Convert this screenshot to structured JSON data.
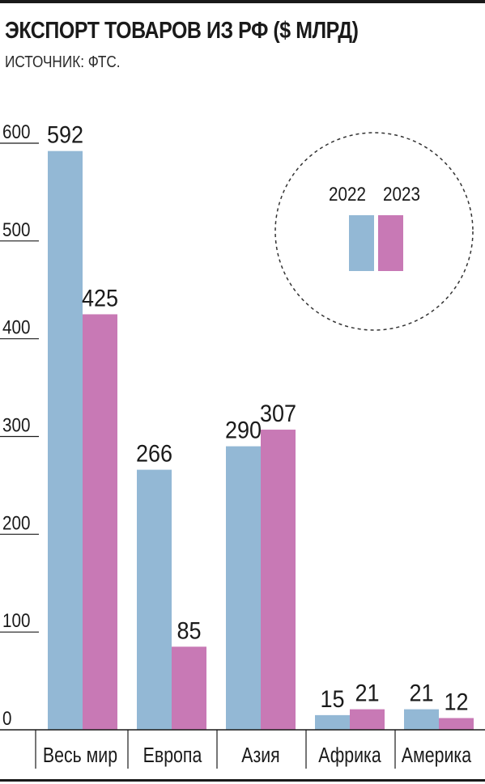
{
  "chart_data": {
    "type": "bar",
    "title": "ЭКСПОРТ ТОВАРОВ ИЗ РФ ($ МЛРД)",
    "subtitle": "ИСТОЧНИК: ФТС.",
    "categories": [
      "Весь мир",
      "Европа",
      "Азия",
      "Африка",
      "Америка"
    ],
    "series": [
      {
        "name": "2022",
        "values": [
          592,
          266,
          290,
          15,
          21
        ],
        "color": "#93b8d5"
      },
      {
        "name": "2023",
        "values": [
          425,
          85,
          307,
          21,
          12
        ],
        "color": "#c879b5"
      }
    ],
    "yticks": [
      0,
      100,
      200,
      300,
      400,
      500,
      600
    ],
    "ylim": [
      0,
      600
    ],
    "legend_position": "top-right",
    "grid": false
  }
}
